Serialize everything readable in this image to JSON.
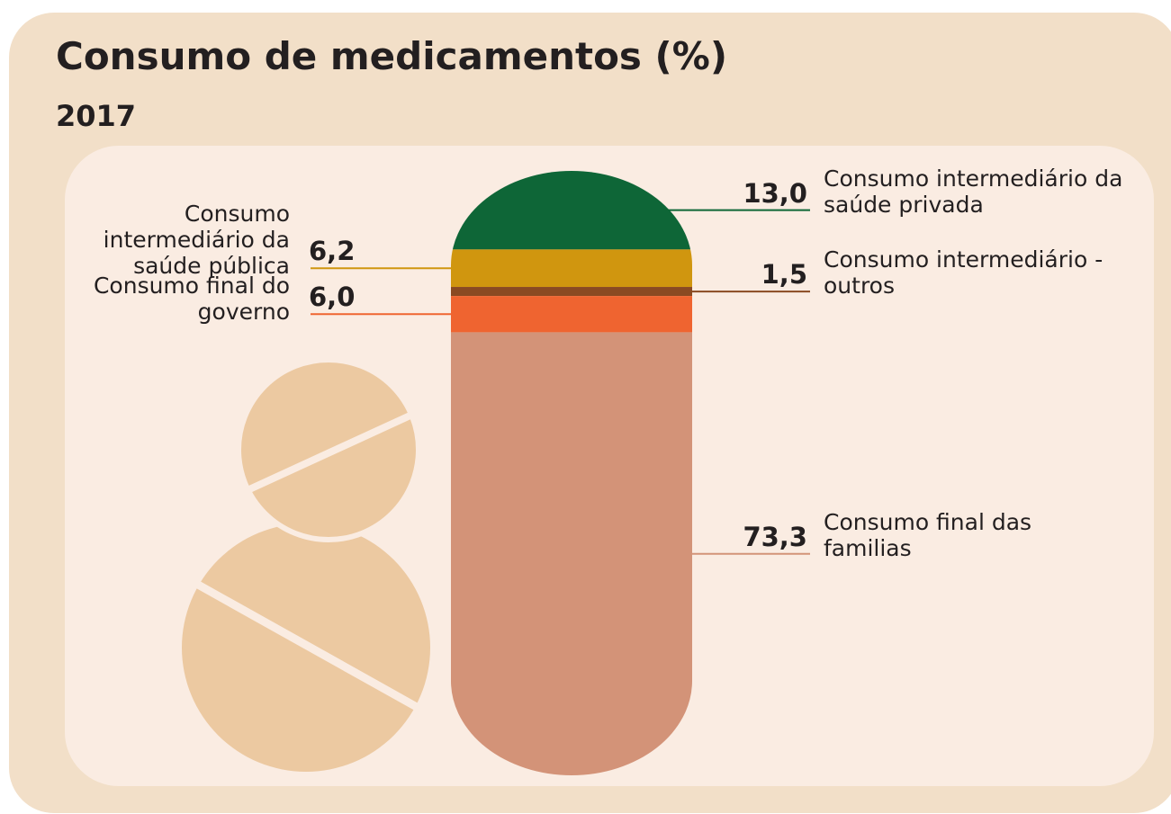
{
  "chart_data": {
    "type": "stacked-bar",
    "title": "Consumo de medicamentos (%)",
    "subtitle": "2017",
    "series": [
      {
        "name": "Consumo intermediário da saúde privada",
        "color": "#0e6637",
        "values": [
          13.0
        ],
        "value_labels": [
          "13,0"
        ]
      },
      {
        "name": "Consumo intermediário da saúde pública",
        "color": "#d0960f",
        "values": [
          6.2
        ],
        "value_labels": [
          "6,2"
        ]
      },
      {
        "name": "Consumo intermediário - outros",
        "color": "#8a4a22",
        "values": [
          1.5
        ],
        "value_labels": [
          "1,5"
        ]
      },
      {
        "name": "Consumo final do governo",
        "color": "#ef6430",
        "values": [
          6.0
        ],
        "value_labels": [
          "6,0"
        ]
      },
      {
        "name": "Consumo final das familias",
        "color": "#d39378",
        "values": [
          73.3
        ],
        "value_labels": [
          "73,3"
        ]
      }
    ],
    "ylim": [
      0,
      100
    ]
  }
}
